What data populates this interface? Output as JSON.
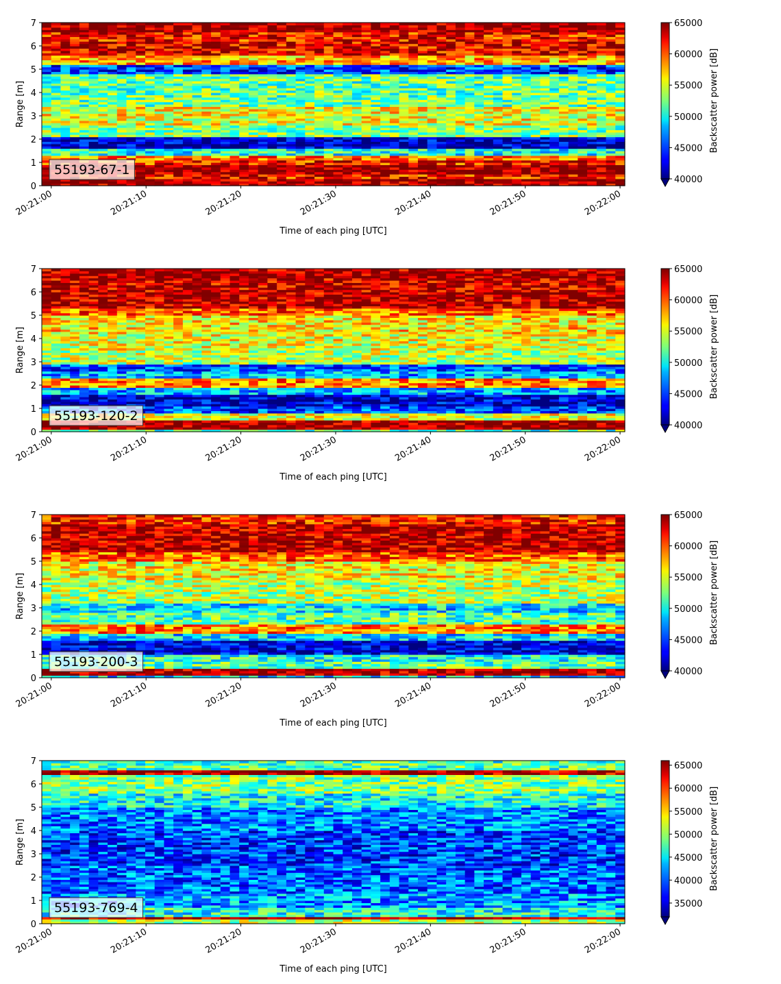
{
  "chart_data": [
    {
      "type": "heatmap",
      "annotation": "55193-67-1",
      "xlabel": "Time of each ping [UTC]",
      "ylabel": "Range [m]",
      "x_ticks": [
        "20:21:00",
        "20:21:10",
        "20:21:20",
        "20:21:30",
        "20:21:40",
        "20:21:50",
        "20:22:00"
      ],
      "y_ticks": [
        "0",
        "1",
        "2",
        "3",
        "4",
        "5",
        "6",
        "7"
      ],
      "xlim": [
        "20:20:59",
        "20:22:00.5"
      ],
      "ylim": [
        0,
        7
      ],
      "colorbar": {
        "label": "Backscatter power [dB]",
        "min": 40000,
        "max": 65000,
        "ticks": [
          "40000",
          "45000",
          "50000",
          "55000",
          "60000",
          "65000"
        ],
        "extend": "min"
      },
      "colormap": "jet",
      "range_profile": [
        {
          "range": [
            0.0,
            0.3
          ],
          "level": 0.97
        },
        {
          "range": [
            0.3,
            0.5
          ],
          "level": 0.86
        },
        {
          "range": [
            0.5,
            0.9
          ],
          "level": 0.99
        },
        {
          "range": [
            0.9,
            1.1
          ],
          "level": 0.85
        },
        {
          "range": [
            1.1,
            1.3
          ],
          "level": 0.75
        },
        {
          "range": [
            1.3,
            1.6
          ],
          "level": 0.4
        },
        {
          "range": [
            1.6,
            2.1
          ],
          "level": 0.06
        },
        {
          "range": [
            2.1,
            2.6
          ],
          "level": 0.5
        },
        {
          "range": [
            2.6,
            3.0
          ],
          "level": 0.6
        },
        {
          "range": [
            3.0,
            3.4
          ],
          "level": 0.62
        },
        {
          "range": [
            3.4,
            4.0
          ],
          "level": 0.48
        },
        {
          "range": [
            4.0,
            4.8
          ],
          "level": 0.47
        },
        {
          "range": [
            4.8,
            5.2
          ],
          "level": 0.18
        },
        {
          "range": [
            5.2,
            5.6
          ],
          "level": 0.7
        },
        {
          "range": [
            5.6,
            6.2
          ],
          "level": 0.9
        },
        {
          "range": [
            6.2,
            6.6
          ],
          "level": 0.86
        },
        {
          "range": [
            6.6,
            7.0
          ],
          "level": 0.98
        }
      ]
    },
    {
      "type": "heatmap",
      "annotation": "55193-120-2",
      "xlabel": "Time of each ping [UTC]",
      "ylabel": "Range [m]",
      "x_ticks": [
        "20:21:00",
        "20:21:10",
        "20:21:20",
        "20:21:30",
        "20:21:40",
        "20:21:50",
        "20:22:00"
      ],
      "y_ticks": [
        "0",
        "1",
        "2",
        "3",
        "4",
        "5",
        "6",
        "7"
      ],
      "xlim": [
        "20:20:59",
        "20:22:00.5"
      ],
      "ylim": [
        0,
        7
      ],
      "colorbar": {
        "label": "Backscatter power [dB]",
        "min": 40000,
        "max": 65000,
        "ticks": [
          "40000",
          "45000",
          "50000",
          "55000",
          "60000",
          "65000"
        ],
        "extend": "min"
      },
      "colormap": "jet",
      "range_profile": [
        {
          "range": [
            0.0,
            0.1
          ],
          "level": 0.45
        },
        {
          "range": [
            0.1,
            0.5
          ],
          "level": 0.98
        },
        {
          "range": [
            0.5,
            0.8
          ],
          "level": 0.6
        },
        {
          "range": [
            0.8,
            1.1
          ],
          "level": 0.2
        },
        {
          "range": [
            1.1,
            1.6
          ],
          "level": 0.08
        },
        {
          "range": [
            1.6,
            1.9
          ],
          "level": 0.3
        },
        {
          "range": [
            1.9,
            2.3
          ],
          "level": 0.75
        },
        {
          "range": [
            2.3,
            2.6
          ],
          "level": 0.3
        },
        {
          "range": [
            2.6,
            2.9
          ],
          "level": 0.2
        },
        {
          "range": [
            2.9,
            3.5
          ],
          "level": 0.55
        },
        {
          "range": [
            3.5,
            4.2
          ],
          "level": 0.6
        },
        {
          "range": [
            4.2,
            5.0
          ],
          "level": 0.65
        },
        {
          "range": [
            5.0,
            5.3
          ],
          "level": 0.78
        },
        {
          "range": [
            5.3,
            6.0
          ],
          "level": 0.95
        },
        {
          "range": [
            6.0,
            6.6
          ],
          "level": 0.93
        },
        {
          "range": [
            6.6,
            7.0
          ],
          "level": 0.97
        }
      ]
    },
    {
      "type": "heatmap",
      "annotation": "55193-200-3",
      "xlabel": "Time of each ping [UTC]",
      "ylabel": "Range [m]",
      "x_ticks": [
        "20:21:00",
        "20:21:10",
        "20:21:20",
        "20:21:30",
        "20:21:40",
        "20:21:50",
        "20:22:00"
      ],
      "y_ticks": [
        "0",
        "1",
        "2",
        "3",
        "4",
        "5",
        "6",
        "7"
      ],
      "xlim": [
        "20:20:59",
        "20:22:00.5"
      ],
      "ylim": [
        0,
        7
      ],
      "colorbar": {
        "label": "Backscatter power [dB]",
        "min": 40000,
        "max": 65000,
        "ticks": [
          "40000",
          "45000",
          "50000",
          "55000",
          "60000",
          "65000"
        ],
        "extend": "min"
      },
      "colormap": "jet",
      "range_profile": [
        {
          "range": [
            0.0,
            0.15
          ],
          "level": 0.35
        },
        {
          "range": [
            0.15,
            0.4
          ],
          "level": 0.97
        },
        {
          "range": [
            0.4,
            0.7
          ],
          "level": 0.45
        },
        {
          "range": [
            0.7,
            1.0
          ],
          "level": 0.4
        },
        {
          "range": [
            1.0,
            1.6
          ],
          "level": 0.08
        },
        {
          "range": [
            1.6,
            1.9
          ],
          "level": 0.35
        },
        {
          "range": [
            1.9,
            2.3
          ],
          "level": 0.75
        },
        {
          "range": [
            2.3,
            2.8
          ],
          "level": 0.45
        },
        {
          "range": [
            2.8,
            3.2
          ],
          "level": 0.35
        },
        {
          "range": [
            3.2,
            4.2
          ],
          "level": 0.55
        },
        {
          "range": [
            4.2,
            5.0
          ],
          "level": 0.62
        },
        {
          "range": [
            5.0,
            5.4
          ],
          "level": 0.78
        },
        {
          "range": [
            5.4,
            6.6
          ],
          "level": 0.95
        },
        {
          "range": [
            6.6,
            7.0
          ],
          "level": 0.85
        }
      ]
    },
    {
      "type": "heatmap",
      "annotation": "55193-769-4",
      "xlabel": "Time of each ping [UTC]",
      "ylabel": "Range [m]",
      "x_ticks": [
        "20:21:00",
        "20:21:10",
        "20:21:20",
        "20:21:30",
        "20:21:40",
        "20:21:50",
        "20:22:00"
      ],
      "y_ticks": [
        "0",
        "1",
        "2",
        "3",
        "4",
        "5",
        "6",
        "7"
      ],
      "xlim": [
        "20:20:59",
        "20:22:00.5"
      ],
      "ylim": [
        0,
        7
      ],
      "colorbar": {
        "label": "Backscatter power [dB]",
        "min": 32000,
        "max": 66000,
        "ticks": [
          "35000",
          "40000",
          "45000",
          "50000",
          "55000",
          "60000",
          "65000"
        ],
        "extend": "min"
      },
      "colormap": "jet",
      "range_profile": [
        {
          "range": [
            0.0,
            0.2
          ],
          "level": 0.55
        },
        {
          "range": [
            0.2,
            0.35
          ],
          "level": 0.96
        },
        {
          "range": [
            0.35,
            0.7
          ],
          "level": 0.4
        },
        {
          "range": [
            0.7,
            1.3
          ],
          "level": 0.28
        },
        {
          "range": [
            1.3,
            2.5
          ],
          "level": 0.22
        },
        {
          "range": [
            2.5,
            4.0
          ],
          "level": 0.18
        },
        {
          "range": [
            4.0,
            5.0
          ],
          "level": 0.25
        },
        {
          "range": [
            5.0,
            5.6
          ],
          "level": 0.38
        },
        {
          "range": [
            5.6,
            6.4
          ],
          "level": 0.5
        },
        {
          "range": [
            6.4,
            6.6
          ],
          "level": 0.96
        },
        {
          "range": [
            6.6,
            7.0
          ],
          "level": 0.45
        }
      ]
    }
  ]
}
